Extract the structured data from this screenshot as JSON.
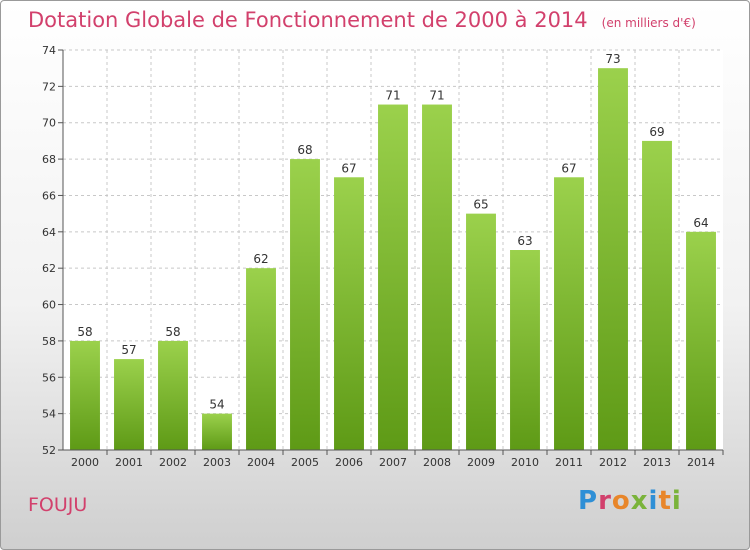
{
  "chart_data": {
    "type": "bar",
    "title": "Dotation Globale de Fonctionnement de 2000 à 2014",
    "unit": "(en milliers d'€)",
    "categories": [
      "2000",
      "2001",
      "2002",
      "2003",
      "2004",
      "2005",
      "2006",
      "2007",
      "2008",
      "2009",
      "2010",
      "2011",
      "2012",
      "2013",
      "2014"
    ],
    "values": [
      58,
      57,
      58,
      54,
      62,
      68,
      67,
      71,
      71,
      65,
      63,
      67,
      73,
      69,
      64
    ],
    "ylim": [
      52,
      74
    ],
    "yticks": [
      52,
      54,
      56,
      58,
      60,
      62,
      64,
      66,
      68,
      70,
      72,
      74
    ],
    "grid": true,
    "bar_color_top": "#9bd14c",
    "bar_color_bottom": "#5e9a16"
  },
  "place_name": "FOUJU",
  "logo": {
    "text": "Proxiti"
  },
  "colors": {
    "accent": "#d2406c"
  }
}
